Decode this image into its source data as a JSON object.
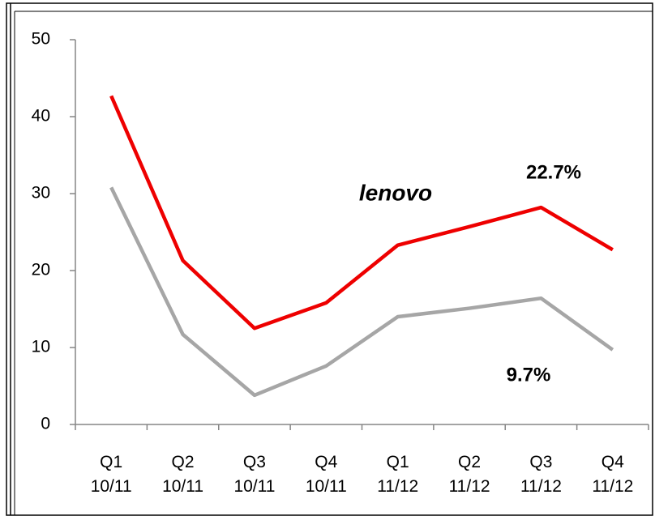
{
  "chart_data": {
    "type": "line",
    "categories": [
      "Q1\n10/11",
      "Q2\n10/11",
      "Q3\n10/11",
      "Q4\n10/11",
      "Q1\n11/12",
      "Q2\n11/12",
      "Q3\n11/12",
      "Q4\n11/12"
    ],
    "series": [
      {
        "color": "#ee0000",
        "values": [
          42.7,
          21.3,
          12.5,
          15.8,
          23.3,
          25.7,
          28.2,
          22.7
        ]
      },
      {
        "color": "#a6a6a6",
        "values": [
          30.8,
          11.7,
          3.8,
          7.6,
          14.0,
          15.1,
          16.4,
          9.7
        ]
      }
    ],
    "annotations": [
      "22.7%",
      "9.7%",
      "lenovo"
    ],
    "ylim": [
      0,
      50
    ],
    "yticks": [
      0,
      10,
      20,
      30,
      40,
      50
    ],
    "grid": false
  }
}
